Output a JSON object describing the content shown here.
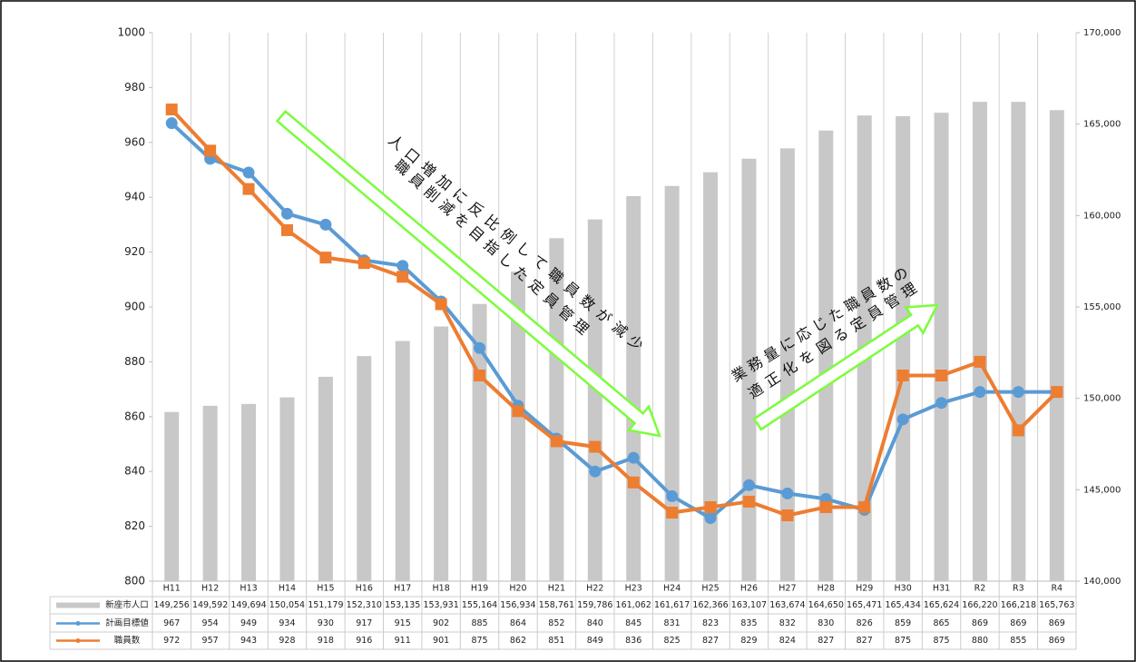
{
  "chart_data": {
    "type": "combo",
    "categories": [
      "H11",
      "H12",
      "H13",
      "H14",
      "H15",
      "H16",
      "H17",
      "H18",
      "H19",
      "H20",
      "H21",
      "H22",
      "H23",
      "H24",
      "H25",
      "H26",
      "H27",
      "H28",
      "H29",
      "H30",
      "H31",
      "R2",
      "R3",
      "R4"
    ],
    "series": [
      {
        "name": "新座市人口",
        "type": "bar",
        "axis": "y2",
        "color": "#c8c8c8",
        "values": [
          149256,
          149592,
          149694,
          150054,
          151179,
          152310,
          153135,
          153931,
          155164,
          156934,
          158761,
          159786,
          161062,
          161617,
          162366,
          163107,
          163674,
          164650,
          165471,
          165434,
          165624,
          166220,
          166218,
          165763
        ],
        "value_labels": [
          "149,256",
          "149,592",
          "149,694",
          "150,054",
          "151,179",
          "152,310",
          "153,135",
          "153,931",
          "155,164",
          "156,934",
          "158,761",
          "159,786",
          "161,062",
          "161,617",
          "162,366",
          "163,107",
          "163,674",
          "164,650",
          "165,471",
          "165,434",
          "165,624",
          "166,220",
          "166,218",
          "165,763"
        ]
      },
      {
        "name": "計画目標値",
        "type": "line",
        "marker": "circle",
        "color": "#5b9bd5",
        "values": [
          967,
          954,
          949,
          934,
          930,
          917,
          915,
          902,
          885,
          864,
          852,
          840,
          845,
          831,
          823,
          835,
          832,
          830,
          826,
          859,
          865,
          869,
          869,
          869
        ]
      },
      {
        "name": "職員数",
        "type": "line",
        "marker": "square",
        "color": "#ed7d31",
        "values": [
          972,
          957,
          943,
          928,
          918,
          916,
          911,
          901,
          875,
          862,
          851,
          849,
          836,
          825,
          827,
          829,
          824,
          827,
          827,
          875,
          875,
          880,
          855,
          869
        ]
      }
    ],
    "ylim": [
      800,
      1000
    ],
    "yticks": [
      800,
      820,
      840,
      860,
      880,
      900,
      920,
      940,
      960,
      980,
      1000
    ],
    "y2lim": [
      140000,
      170000
    ],
    "y2ticks": [
      {
        "value": 140000,
        "label": "140,000"
      },
      {
        "value": 145000,
        "label": "145,000"
      },
      {
        "value": 150000,
        "label": "150,000"
      },
      {
        "value": 155000,
        "label": "155,000"
      },
      {
        "value": 160000,
        "label": "160,000"
      },
      {
        "value": 165000,
        "label": "165,000"
      },
      {
        "value": 170000,
        "label": "170,000"
      }
    ],
    "annotations": [
      {
        "lines": [
          "人口増加に反比例して職員数が減少",
          "職員削減を目指した定員管理"
        ]
      },
      {
        "lines": [
          "業務量に応じた職員数の",
          "適正化を図る定員管理"
        ]
      }
    ]
  }
}
